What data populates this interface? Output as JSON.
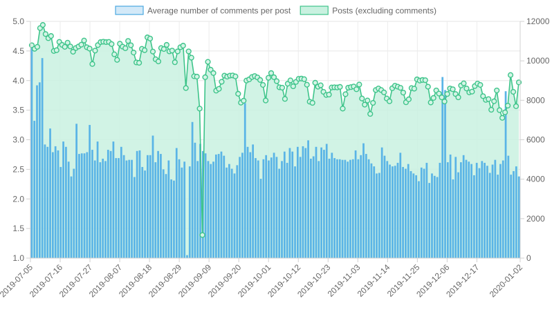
{
  "chart_data": {
    "type": "bar+line",
    "legend": [
      {
        "name": "Average number of comments per post",
        "fill": "#d3e9f8",
        "stroke": "#4aa8e0"
      },
      {
        "name": "Posts (excluding comments)",
        "fill": "#c9f1e0",
        "stroke": "#3ec48a"
      }
    ],
    "legend_position": "top",
    "grid": true,
    "x_tick_labels": [
      "2019-07-05",
      "2019-07-16",
      "2019-07-27",
      "2019-08-07",
      "2019-08-18",
      "2019-08-29",
      "2019-09-09",
      "2019-09-20",
      "2019-10-01",
      "2019-10-12",
      "2019-10-23",
      "2019-11-03",
      "2019-11-14",
      "2019-11-25",
      "2019-12-06",
      "2019-12-17",
      "2020-01-02"
    ],
    "x_start_date": "2019-07-05",
    "x_end_date": "2020-01-02",
    "y_left": {
      "min": 1.0,
      "max": 5.0,
      "ticks": [
        "1.0",
        "1.5",
        "2.0",
        "2.5",
        "3.0",
        "3.5",
        "4.0",
        "4.5",
        "5.0"
      ]
    },
    "y_right": {
      "min": 0,
      "max": 12000,
      "ticks": [
        "0",
        "2000",
        "4000",
        "6000",
        "8000",
        "10000",
        "12000"
      ]
    },
    "series": [
      {
        "name": "Average number of comments per post",
        "type": "bar",
        "axis": "left",
        "color": "#5ab4e6",
        "values": [
          4.55,
          3.32,
          3.92,
          3.97,
          4.38,
          2.92,
          2.88,
          3.19,
          2.79,
          2.89,
          2.82,
          2.54,
          2.97,
          2.88,
          2.63,
          2.38,
          2.51,
          3.27,
          2.76,
          2.77,
          2.77,
          2.79,
          3.25,
          2.83,
          2.65,
          2.97,
          2.62,
          2.68,
          2.64,
          2.83,
          2.81,
          2.97,
          2.69,
          2.69,
          2.88,
          2.74,
          2.65,
          2.66,
          2.66,
          2.37,
          2.81,
          2.82,
          2.54,
          2.48,
          2.74,
          2.74,
          3.07,
          2.62,
          2.81,
          2.76,
          2.5,
          2.42,
          2.65,
          2.33,
          2.31,
          2.86,
          2.67,
          2.53,
          2.63,
          1.05,
          2.55,
          3.3,
          2.95,
          2.64,
          2.93,
          2.81,
          2.77,
          2.64,
          2.59,
          2.63,
          2.75,
          2.76,
          2.8,
          2.73,
          2.53,
          2.59,
          2.51,
          2.43,
          2.57,
          2.71,
          2.78,
          3.62,
          2.88,
          2.79,
          2.92,
          2.69,
          2.65,
          2.34,
          2.67,
          2.74,
          2.65,
          2.7,
          2.78,
          2.71,
          2.51,
          2.64,
          2.8,
          2.61,
          2.86,
          2.8,
          2.55,
          2.88,
          2.71,
          2.89,
          2.86,
          2.99,
          2.68,
          2.72,
          2.88,
          2.64,
          2.87,
          2.83,
          2.93,
          2.68,
          2.78,
          2.69,
          2.67,
          2.67,
          2.66,
          2.66,
          2.63,
          2.66,
          2.67,
          2.82,
          2.67,
          2.74,
          2.94,
          2.76,
          2.67,
          2.6,
          2.55,
          2.43,
          2.44,
          2.87,
          2.73,
          2.64,
          2.58,
          2.55,
          2.56,
          2.61,
          2.78,
          2.54,
          2.51,
          2.59,
          2.47,
          2.43,
          2.4,
          2.3,
          2.53,
          2.51,
          2.61,
          2.27,
          2.43,
          2.39,
          2.37,
          2.61,
          4.06,
          3.84,
          2.62,
          2.75,
          2.33,
          2.71,
          2.45,
          2.62,
          2.74,
          2.66,
          2.63,
          2.59,
          2.4,
          2.61,
          2.52,
          2.64,
          2.61,
          2.56,
          2.44,
          2.58,
          2.66,
          2.41,
          2.59,
          2.65,
          3.82,
          2.73,
          2.41,
          2.47,
          2.55,
          2.38
        ],
        "value_note": ""
      },
      {
        "name": "Posts (excluding comments)",
        "type": "line",
        "axis": "right",
        "color": "#3ec48a",
        "values": [
          10790,
          10610,
          10710,
          11660,
          11820,
          11360,
          11150,
          11260,
          10500,
          10540,
          10960,
          10810,
          10710,
          10920,
          10730,
          10460,
          10650,
          10730,
          10820,
          11030,
          10690,
          10620,
          9840,
          10520,
          10800,
          10950,
          10970,
          10950,
          10960,
          10850,
          10330,
          10050,
          10870,
          10720,
          10640,
          11010,
          10790,
          10420,
          9920,
          9900,
          10610,
          10540,
          11190,
          11130,
          10470,
          10080,
          9970,
          10650,
          10600,
          10810,
          10480,
          10520,
          9930,
          10480,
          10690,
          10770,
          8620,
          10480,
          10160,
          9220,
          9200,
          7580,
          1170,
          9170,
          9950,
          9550,
          9380,
          8490,
          8580,
          8940,
          9250,
          9200,
          9250,
          9260,
          9210,
          8330,
          7880,
          7980,
          9000,
          9060,
          9180,
          9230,
          9160,
          9030,
          8780,
          7990,
          9140,
          9380,
          9170,
          8970,
          8660,
          8640,
          8070,
          8840,
          9010,
          8710,
          8930,
          9090,
          9100,
          9070,
          8790,
          7930,
          7870,
          8890,
          8690,
          8760,
          8430,
          8270,
          8290,
          8650,
          8660,
          8650,
          8680,
          7580,
          8310,
          8640,
          8670,
          8700,
          8560,
          8800,
          8090,
          7780,
          7990,
          7310,
          7870,
          8520,
          8600,
          8520,
          8400,
          8090,
          7950,
          8610,
          8740,
          8690,
          8630,
          8390,
          7900,
          8050,
          8620,
          8590,
          9060,
          9000,
          9030,
          9020,
          8690,
          7890,
          8120,
          8500,
          8340,
          8150,
          7940,
          8320,
          8600,
          8560,
          8320,
          8150,
          8750,
          8860,
          8600,
          8400,
          8440,
          8720,
          8850,
          8780,
          8210,
          8020,
          8060,
          7520,
          7950,
          8500,
          7500,
          7110,
          7390,
          7730,
          9280,
          8430,
          7700,
          8910
        ]
      }
    ]
  }
}
